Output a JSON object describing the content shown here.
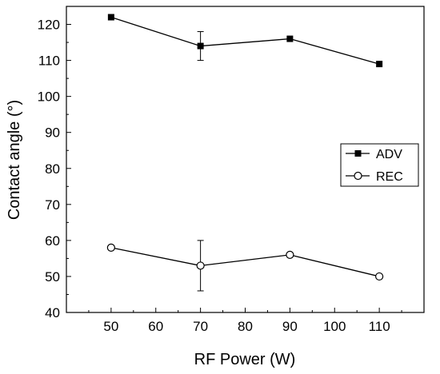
{
  "chart_data": {
    "type": "line",
    "xlabel": "RF Power (W)",
    "ylabel": "Contact angle (°)",
    "xlim": [
      40,
      120
    ],
    "ylim": [
      40,
      125
    ],
    "xticks": [
      50,
      60,
      70,
      80,
      90,
      100,
      110
    ],
    "yticks": [
      40,
      50,
      60,
      70,
      80,
      90,
      100,
      110,
      120
    ],
    "x": [
      50,
      70,
      90,
      110
    ],
    "series": [
      {
        "name": "ADV",
        "values": [
          122,
          114,
          116,
          109
        ],
        "error": [
          null,
          4,
          null,
          null
        ],
        "marker": "filled-square",
        "color": "#000000"
      },
      {
        "name": "REC",
        "values": [
          58,
          53,
          56,
          50
        ],
        "error": [
          null,
          7,
          null,
          null
        ],
        "marker": "open-circle",
        "color": "#000000"
      }
    ],
    "legend": "right-middle",
    "grid": false
  }
}
